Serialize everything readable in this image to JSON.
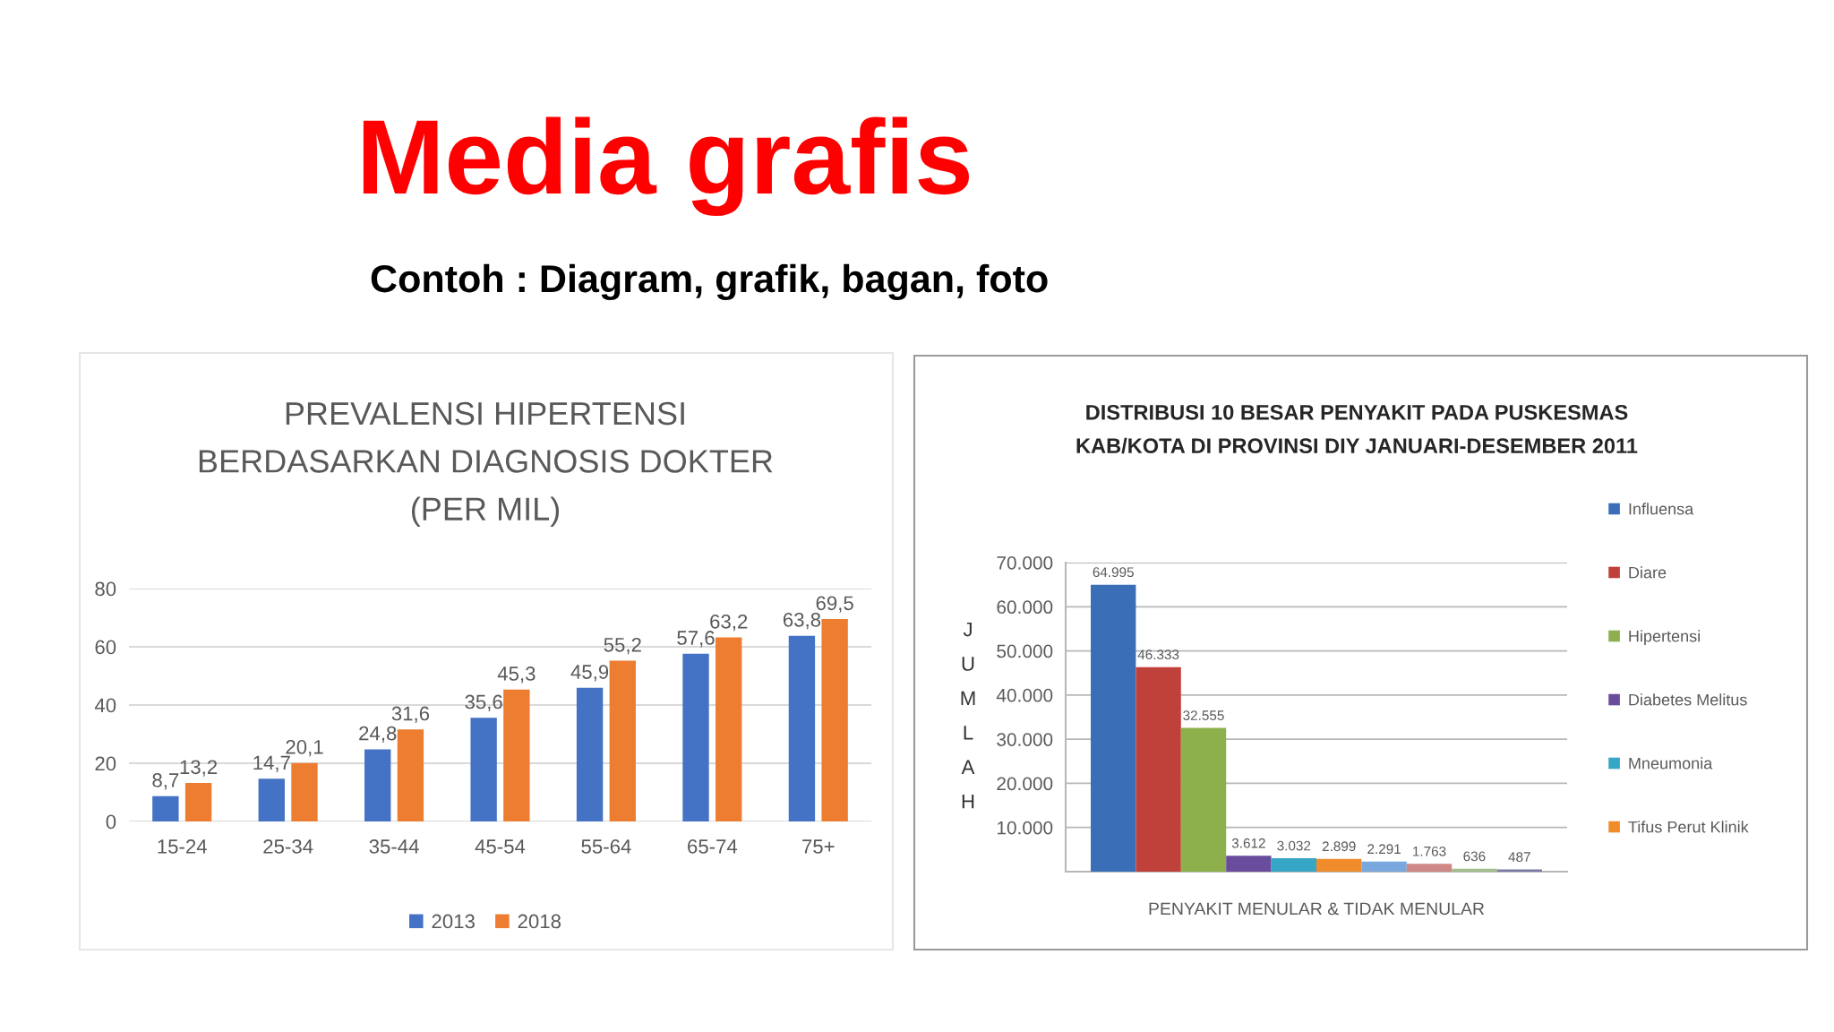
{
  "chart_data": [
    {
      "type": "other",
      "title": "Media grafis",
      "subtitle": "Contoh : Diagram, grafik, bagan, foto"
    },
    {
      "type": "bar",
      "title": "PREVALENSI HIPERTENSI\nBERDASARKAN DIAGNOSIS DOKTER\n(PER MIL)",
      "categories": [
        "15-24",
        "25-34",
        "35-44",
        "45-54",
        "55-64",
        "65-74",
        "75+"
      ],
      "series": [
        {
          "name": "2013",
          "color": "#4472c4",
          "values": [
            8.7,
            14.7,
            24.8,
            35.6,
            45.9,
            57.6,
            63.8
          ],
          "value_labels": [
            "8,7",
            "14,7",
            "24,8",
            "35,6",
            "45,9",
            "57,6",
            "63,8"
          ]
        },
        {
          "name": "2018",
          "color": "#ed7d31",
          "values": [
            13.2,
            20.1,
            31.6,
            45.3,
            55.2,
            63.2,
            69.5
          ],
          "value_labels": [
            "13,2",
            "20,1",
            "31,6",
            "45,3",
            "55,2",
            "63,2",
            "69,5"
          ]
        }
      ],
      "ylim": [
        0,
        80
      ],
      "yticks": [
        0,
        20,
        40,
        60,
        80
      ],
      "grid": "y",
      "legend": "bottom"
    },
    {
      "type": "bar",
      "title": "DISTRIBUSI 10 BESAR PENYAKIT PADA PUSKESMAS\nKAB/KOTA DI PROVINSI DIY JANUARI-DESEMBER 2011",
      "xlabel": "PENYAKIT MENULAR & TIDAK MENULAR",
      "ylabel": "JUMLAH",
      "categories": [
        null
      ],
      "series": [
        {
          "name": "Influensa",
          "color": "#3a6fb8",
          "values": [
            64995
          ],
          "value_labels": [
            "64.995"
          ]
        },
        {
          "name": "Diare",
          "color": "#c0403a",
          "values": [
            46333
          ],
          "value_labels": [
            "46.333"
          ]
        },
        {
          "name": "Hipertensi",
          "color": "#8db04c",
          "values": [
            32555
          ],
          "value_labels": [
            "32.555"
          ]
        },
        {
          "name": "Diabetes Melitus",
          "color": "#6a4c9c",
          "values": [
            3612
          ],
          "value_labels": [
            "3.612"
          ]
        },
        {
          "name": "Mneumonia",
          "color": "#35a6c6",
          "values": [
            3032
          ],
          "value_labels": [
            "3.032"
          ]
        },
        {
          "name": "Tifus Perut Klinik",
          "color": "#f08c2c",
          "values": [
            2899
          ],
          "value_labels": [
            "2.899"
          ]
        },
        {
          "color": "#78a8de",
          "values": [
            2291
          ],
          "value_labels": [
            "2.291"
          ]
        },
        {
          "color": "#d08886",
          "values": [
            1763
          ],
          "value_labels": [
            "1.763"
          ]
        },
        {
          "color": "#a4be8c",
          "values": [
            636
          ],
          "value_labels": [
            "636"
          ]
        },
        {
          "color": "#7a7aa6",
          "values": [
            487
          ],
          "value_labels": [
            "487"
          ]
        }
      ],
      "ylim": [
        0,
        70000
      ],
      "yticks": [
        {
          "value": 10000,
          "label": "10.000"
        },
        {
          "value": 20000,
          "label": "20.000"
        },
        {
          "value": 30000,
          "label": "30.000"
        },
        {
          "value": 40000,
          "label": "40.000"
        },
        {
          "value": 50000,
          "label": "50.000"
        },
        {
          "value": 60000,
          "label": "60.000"
        },
        {
          "value": 70000,
          "label": "70.000"
        }
      ],
      "grid": "y",
      "legend": "right"
    }
  ]
}
